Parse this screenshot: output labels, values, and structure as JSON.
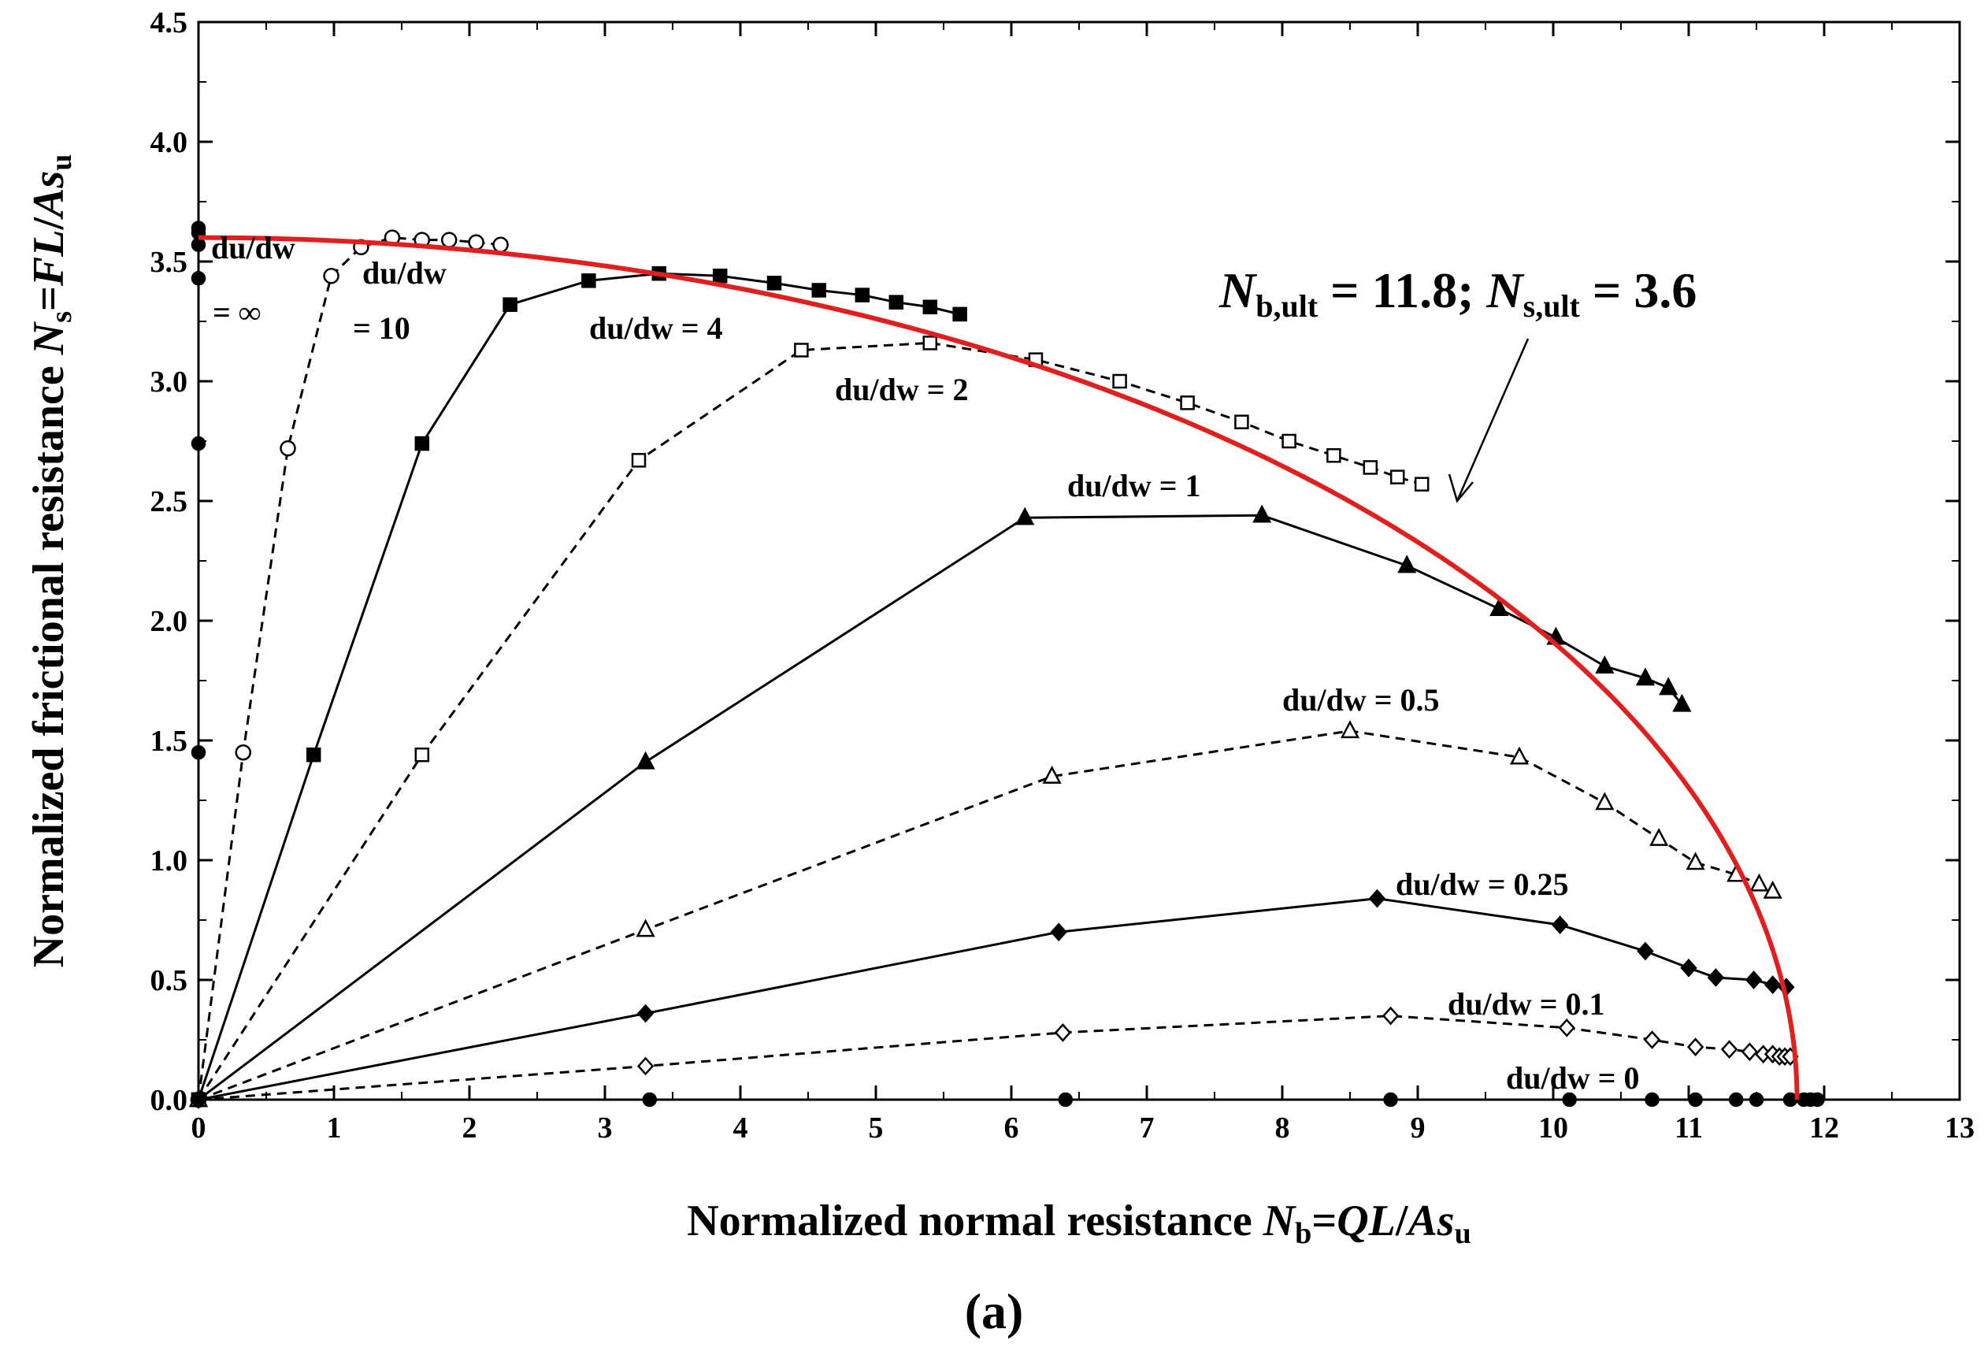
{
  "chart_data": {
    "type": "line",
    "title": "",
    "panel_label": "(a)",
    "xlabel": {
      "prefix": "Normalized normal resistance ",
      "var": "N",
      "sub": "b",
      "rhs_italic": "QL",
      "rhs_sep": "/",
      "rhs_italic2": "As",
      "rhs_sub": "u"
    },
    "ylabel": {
      "prefix": "Normalized frictional resistance ",
      "var": "N",
      "sub": "s",
      "rhs_italic": "FL",
      "rhs_sep": "/",
      "rhs_italic2": "As",
      "rhs_sub": "u"
    },
    "xlim": [
      0,
      13
    ],
    "ylim": [
      0,
      4.5
    ],
    "x_ticks": [
      0,
      1,
      2,
      3,
      4,
      5,
      6,
      7,
      8,
      9,
      10,
      11,
      12,
      13
    ],
    "x_tick_labels": [
      "0",
      "1",
      "2",
      "3",
      "4",
      "5",
      "6",
      "7",
      "8",
      "9",
      "10",
      "11",
      "12",
      "13"
    ],
    "y_ticks": [
      0,
      0.5,
      1,
      1.5,
      2,
      2.5,
      3,
      3.5,
      4,
      4.5
    ],
    "y_tick_labels": [
      "0.0",
      "0.5",
      "1.0",
      "1.5",
      "2.0",
      "2.5",
      "3.0",
      "3.5",
      "4.0",
      "4.5"
    ],
    "grid": false,
    "series": [
      {
        "name": "du/dw = ∞",
        "label_lines": [
          "du/dw",
          "= ∞"
        ],
        "style": "solid",
        "marker": "circle",
        "filled": true,
        "draw_line": false,
        "x": [
          0,
          0,
          0,
          0,
          0,
          0
        ],
        "y": [
          1.45,
          2.74,
          3.43,
          3.57,
          3.62,
          3.64
        ]
      },
      {
        "name": "du/dw = 10",
        "label_lines": [
          "du/dw",
          "= 10"
        ],
        "style": "dashed",
        "marker": "circle",
        "filled": false,
        "draw_line": true,
        "x": [
          0,
          0.33,
          0.66,
          0.98,
          1.2,
          1.43,
          1.65,
          1.85,
          2.05,
          2.23
        ],
        "y": [
          0,
          1.45,
          2.72,
          3.44,
          3.56,
          3.6,
          3.59,
          3.59,
          3.58,
          3.57
        ]
      },
      {
        "name": "du/dw = 4",
        "label_lines": [
          "du/dw = 4"
        ],
        "style": "solid",
        "marker": "square",
        "filled": true,
        "draw_line": true,
        "x": [
          0,
          0.85,
          1.65,
          2.3,
          2.88,
          3.4,
          3.85,
          4.25,
          4.58,
          4.9,
          5.15,
          5.4,
          5.62
        ],
        "y": [
          0,
          1.44,
          2.74,
          3.32,
          3.42,
          3.45,
          3.44,
          3.41,
          3.38,
          3.36,
          3.33,
          3.31,
          3.28
        ]
      },
      {
        "name": "du/dw = 2",
        "label_lines": [
          "du/dw = 2"
        ],
        "style": "dashed",
        "marker": "square",
        "filled": false,
        "draw_line": true,
        "x": [
          0,
          1.65,
          3.25,
          4.45,
          5.4,
          6.18,
          6.8,
          7.3,
          7.7,
          8.05,
          8.38,
          8.65,
          8.85,
          9.03
        ],
        "y": [
          0,
          1.44,
          2.67,
          3.13,
          3.16,
          3.09,
          3.0,
          2.91,
          2.83,
          2.75,
          2.69,
          2.64,
          2.6,
          2.57
        ]
      },
      {
        "name": "du/dw = 1",
        "label_lines": [
          "du/dw = 1"
        ],
        "style": "solid",
        "marker": "triangle",
        "filled": true,
        "draw_line": true,
        "x": [
          0,
          3.3,
          6.1,
          7.85,
          8.92,
          9.6,
          10.02,
          10.38,
          10.68,
          10.85,
          10.95
        ],
        "y": [
          0,
          1.41,
          2.43,
          2.44,
          2.23,
          2.05,
          1.93,
          1.81,
          1.76,
          1.72,
          1.65
        ]
      },
      {
        "name": "du/dw = 0.5",
        "label_lines": [
          "du/dw = 0.5"
        ],
        "style": "dashed",
        "marker": "triangle",
        "filled": false,
        "draw_line": true,
        "x": [
          0,
          3.3,
          6.3,
          8.5,
          9.75,
          10.38,
          10.78,
          11.05,
          11.35,
          11.52,
          11.62
        ],
        "y": [
          0,
          0.71,
          1.35,
          1.54,
          1.43,
          1.24,
          1.09,
          0.99,
          0.94,
          0.9,
          0.87
        ]
      },
      {
        "name": "du/dw = 0.25",
        "label_lines": [
          "du/dw = 0.25"
        ],
        "style": "solid",
        "marker": "diamond",
        "filled": true,
        "draw_line": true,
        "x": [
          0,
          3.3,
          6.35,
          8.7,
          10.05,
          10.68,
          11.0,
          11.2,
          11.48,
          11.62,
          11.72
        ],
        "y": [
          0,
          0.36,
          0.7,
          0.84,
          0.73,
          0.62,
          0.55,
          0.51,
          0.5,
          0.48,
          0.47
        ]
      },
      {
        "name": "du/dw = 0.1",
        "label_lines": [
          "du/dw = 0.1"
        ],
        "style": "dashed",
        "marker": "diamond",
        "filled": false,
        "draw_line": true,
        "x": [
          0,
          3.3,
          6.38,
          8.8,
          10.1,
          10.73,
          11.05,
          11.3,
          11.45,
          11.55,
          11.62,
          11.67,
          11.71,
          11.75
        ],
        "y": [
          0,
          0.14,
          0.28,
          0.35,
          0.3,
          0.25,
          0.22,
          0.21,
          0.2,
          0.19,
          0.19,
          0.18,
          0.18,
          0.18
        ]
      },
      {
        "name": "du/dw = 0",
        "label_lines": [
          "du/dw = 0"
        ],
        "style": "solid",
        "marker": "circle",
        "filled": true,
        "draw_line": true,
        "x": [
          0,
          3.33,
          6.4,
          8.8,
          10.12,
          10.73,
          11.05,
          11.35,
          11.5,
          11.75,
          11.85,
          11.9,
          11.95
        ],
        "y": [
          0,
          0,
          0,
          0,
          0,
          0,
          0,
          0,
          0,
          0,
          0,
          0,
          0
        ]
      }
    ],
    "envelope": {
      "name": "failure envelope",
      "color": "#e0201e",
      "N_b_ult": 11.8,
      "N_s_ult": 3.6
    },
    "annotation": {
      "var1": "N",
      "sub1": "b,ult",
      "eq1": " =  11.8; ",
      "var2": "N",
      "sub2": "s,ult",
      "eq2": " = 3.6"
    }
  }
}
